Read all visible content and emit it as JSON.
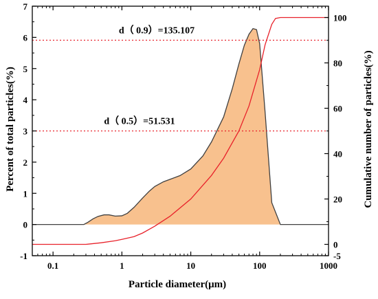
{
  "chart_data": {
    "type": "area",
    "xlabel": "Particle diameter(μm)",
    "ylabel_left": "Percent of total particles(%)",
    "ylabel_right": "Cumulative number of particles(%)",
    "x_scale": "log",
    "xlim": [
      0.05,
      1000
    ],
    "ylim_left": [
      -1,
      7
    ],
    "ylim_right": [
      -5,
      105
    ],
    "x_ticks": [
      "0.1",
      "1",
      "10",
      "100",
      "1000"
    ],
    "y_left_ticks": [
      "-1",
      "0",
      "1",
      "2",
      "3",
      "4",
      "5",
      "6",
      "7"
    ],
    "y_right_ticks": [
      "-5",
      "0",
      "20",
      "40",
      "60",
      "80",
      "100"
    ],
    "grid": false,
    "colors": {
      "area_fill": "#f8c18e",
      "area_outline": "#404040",
      "cumulative_line": "#e8212a",
      "reference_lines": "#e8212a"
    },
    "series": [
      {
        "axis": "left",
        "style": "area",
        "x": [
          0.05,
          0.28,
          0.32,
          0.38,
          0.45,
          0.55,
          0.65,
          0.8,
          1.0,
          1.2,
          1.5,
          2,
          2.5,
          3,
          4,
          5,
          7,
          10,
          15,
          20,
          30,
          40,
          50,
          60,
          70,
          80,
          90,
          100,
          120,
          150,
          200,
          1000
        ],
        "y": [
          0,
          0,
          0.07,
          0.18,
          0.26,
          0.31,
          0.31,
          0.27,
          0.28,
          0.36,
          0.55,
          0.85,
          1.07,
          1.22,
          1.37,
          1.45,
          1.57,
          1.78,
          2.2,
          2.65,
          3.45,
          4.35,
          5.15,
          5.75,
          6.1,
          6.28,
          6.25,
          5.8,
          3.6,
          0.7,
          0,
          0
        ]
      },
      {
        "axis": "right",
        "style": "line",
        "x": [
          0.05,
          0.3,
          0.5,
          0.8,
          1,
          1.5,
          2,
          3,
          5,
          10,
          20,
          30,
          50,
          70,
          100,
          120,
          150,
          170,
          200,
          1000
        ],
        "y": [
          0,
          0,
          0.7,
          1.6,
          2.2,
          3.4,
          5.0,
          8.0,
          12.4,
          20.0,
          30.4,
          38.0,
          50.0,
          61.0,
          77.0,
          88.0,
          97.0,
          99.6,
          100,
          100
        ]
      }
    ],
    "reference_lines": [
      {
        "axis": "right",
        "y": 50,
        "label": "d（ 0.5）=51.531",
        "label_x": 1.8
      },
      {
        "axis": "right",
        "y": 90,
        "label": "d（ 0.9）=135.107",
        "label_x": 3.2
      }
    ]
  }
}
